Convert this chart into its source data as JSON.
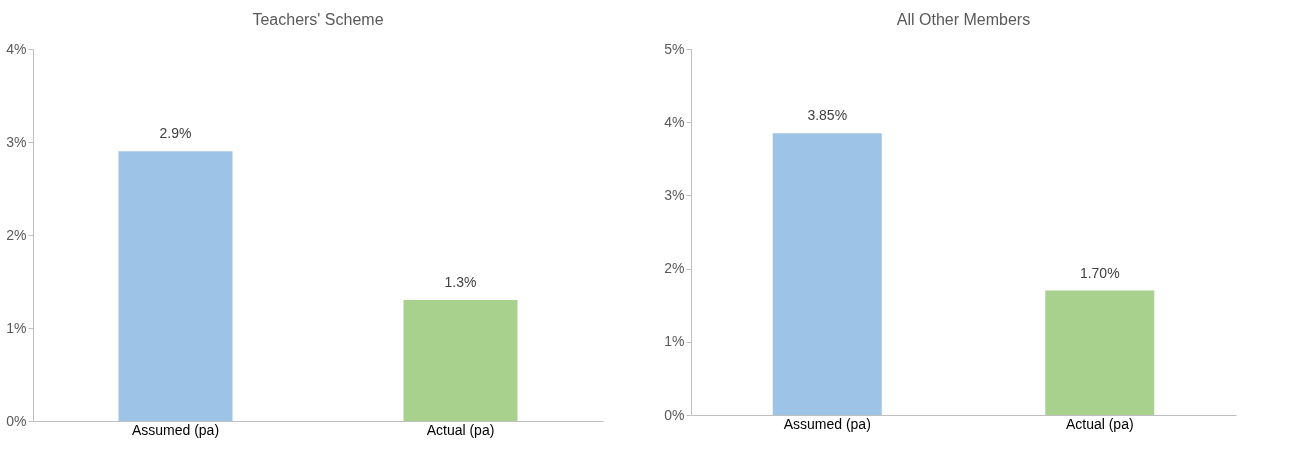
{
  "chart_data": [
    {
      "type": "bar",
      "title": "Teachers' Scheme",
      "categories": [
        "Assumed (pa)",
        "Actual (pa)"
      ],
      "values": [
        2.9,
        1.3
      ],
      "colors": [
        "#9dc3e6",
        "#a9d18e"
      ],
      "value_labels": [
        "2.9%",
        "1.3%"
      ],
      "ylim": [
        0,
        4
      ],
      "yticks": [
        {
          "value": 0,
          "label": "0%"
        },
        {
          "value": 1,
          "label": "1%"
        },
        {
          "value": 2,
          "label": "2%"
        },
        {
          "value": 3,
          "label": "3%"
        },
        {
          "value": 4,
          "label": "4%"
        }
      ],
      "grid": false,
      "legend": false
    },
    {
      "type": "bar",
      "title": "All Other Members",
      "categories": [
        "Assumed (pa)",
        "Actual (pa)"
      ],
      "values": [
        3.85,
        1.7
      ],
      "colors": [
        "#9dc3e6",
        "#a9d18e"
      ],
      "value_labels": [
        "3.85%",
        "1.70%"
      ],
      "ylim": [
        0,
        5
      ],
      "yticks": [
        {
          "value": 0,
          "label": "0%"
        },
        {
          "value": 1,
          "label": "1%"
        },
        {
          "value": 2,
          "label": "2%"
        },
        {
          "value": 3,
          "label": "3%"
        },
        {
          "value": 4,
          "label": "4%"
        },
        {
          "value": 5,
          "label": "5%"
        }
      ],
      "grid": false,
      "legend": false
    }
  ]
}
